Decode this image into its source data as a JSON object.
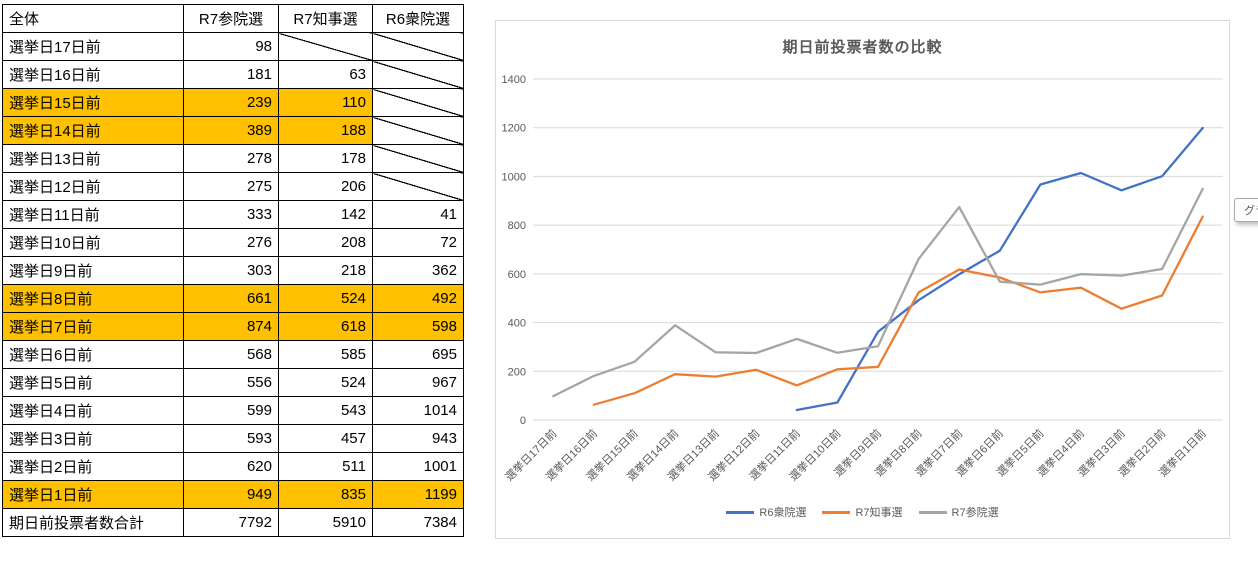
{
  "table": {
    "headers": [
      "全体",
      "R7参院選",
      "R7知事選",
      "R6衆院選"
    ],
    "highlight_color": "#FFC000",
    "rows": [
      {
        "label": "選挙日17日前",
        "values": [
          98,
          null,
          null
        ],
        "highlight": false
      },
      {
        "label": "選挙日16日前",
        "values": [
          181,
          63,
          null
        ],
        "highlight": false
      },
      {
        "label": "選挙日15日前",
        "values": [
          239,
          110,
          null
        ],
        "highlight": true
      },
      {
        "label": "選挙日14日前",
        "values": [
          389,
          188,
          null
        ],
        "highlight": true
      },
      {
        "label": "選挙日13日前",
        "values": [
          278,
          178,
          null
        ],
        "highlight": false
      },
      {
        "label": "選挙日12日前",
        "values": [
          275,
          206,
          null
        ],
        "highlight": false
      },
      {
        "label": "選挙日11日前",
        "values": [
          333,
          142,
          41
        ],
        "highlight": false
      },
      {
        "label": "選挙日10日前",
        "values": [
          276,
          208,
          72
        ],
        "highlight": false
      },
      {
        "label": "選挙日9日前",
        "values": [
          303,
          218,
          362
        ],
        "highlight": false
      },
      {
        "label": "選挙日8日前",
        "values": [
          661,
          524,
          492
        ],
        "highlight": true
      },
      {
        "label": "選挙日7日前",
        "values": [
          874,
          618,
          598
        ],
        "highlight": true
      },
      {
        "label": "選挙日6日前",
        "values": [
          568,
          585,
          695
        ],
        "highlight": false
      },
      {
        "label": "選挙日5日前",
        "values": [
          556,
          524,
          967
        ],
        "highlight": false
      },
      {
        "label": "選挙日4日前",
        "values": [
          599,
          543,
          1014
        ],
        "highlight": false
      },
      {
        "label": "選挙日3日前",
        "values": [
          593,
          457,
          943
        ],
        "highlight": false
      },
      {
        "label": "選挙日2日前",
        "values": [
          620,
          511,
          1001
        ],
        "highlight": false
      },
      {
        "label": "選挙日1日前",
        "values": [
          949,
          835,
          1199
        ],
        "highlight": true
      }
    ],
    "total_row": {
      "label": "期日前投票者数合計",
      "values": [
        7792,
        5910,
        7384
      ]
    }
  },
  "chart_data": {
    "type": "line",
    "title": "期日前投票者数の比較",
    "categories": [
      "選挙日17日前",
      "選挙日16日前",
      "選挙日15日前",
      "選挙日14日前",
      "選挙日13日前",
      "選挙日12日前",
      "選挙日11日前",
      "選挙日10日前",
      "選挙日9日前",
      "選挙日8日前",
      "選挙日7日前",
      "選挙日6日前",
      "選挙日5日前",
      "選挙日4日前",
      "選挙日3日前",
      "選挙日2日前",
      "選挙日1日前"
    ],
    "series": [
      {
        "name": "R6衆院選",
        "color": "#4472C4",
        "values": [
          null,
          null,
          null,
          null,
          null,
          null,
          41,
          72,
          362,
          492,
          598,
          695,
          967,
          1014,
          943,
          1001,
          1199
        ]
      },
      {
        "name": "R7知事選",
        "color": "#ED7D31",
        "values": [
          null,
          63,
          110,
          188,
          178,
          206,
          142,
          208,
          218,
          524,
          618,
          585,
          524,
          543,
          457,
          511,
          835
        ]
      },
      {
        "name": "R7参院選",
        "color": "#A5A5A5",
        "values": [
          98,
          181,
          239,
          389,
          278,
          275,
          333,
          276,
          303,
          661,
          874,
          568,
          556,
          599,
          593,
          620,
          949
        ]
      }
    ],
    "ylim": [
      0,
      1400
    ],
    "ytick_step": 200,
    "yticks": [
      0,
      200,
      400,
      600,
      800,
      1000,
      1200,
      1400
    ],
    "grid": true,
    "legend_position": "bottom",
    "text_color": "#595959",
    "gridline_color": "#D9D9D9"
  },
  "tooltip": {
    "label": "グラフ"
  }
}
